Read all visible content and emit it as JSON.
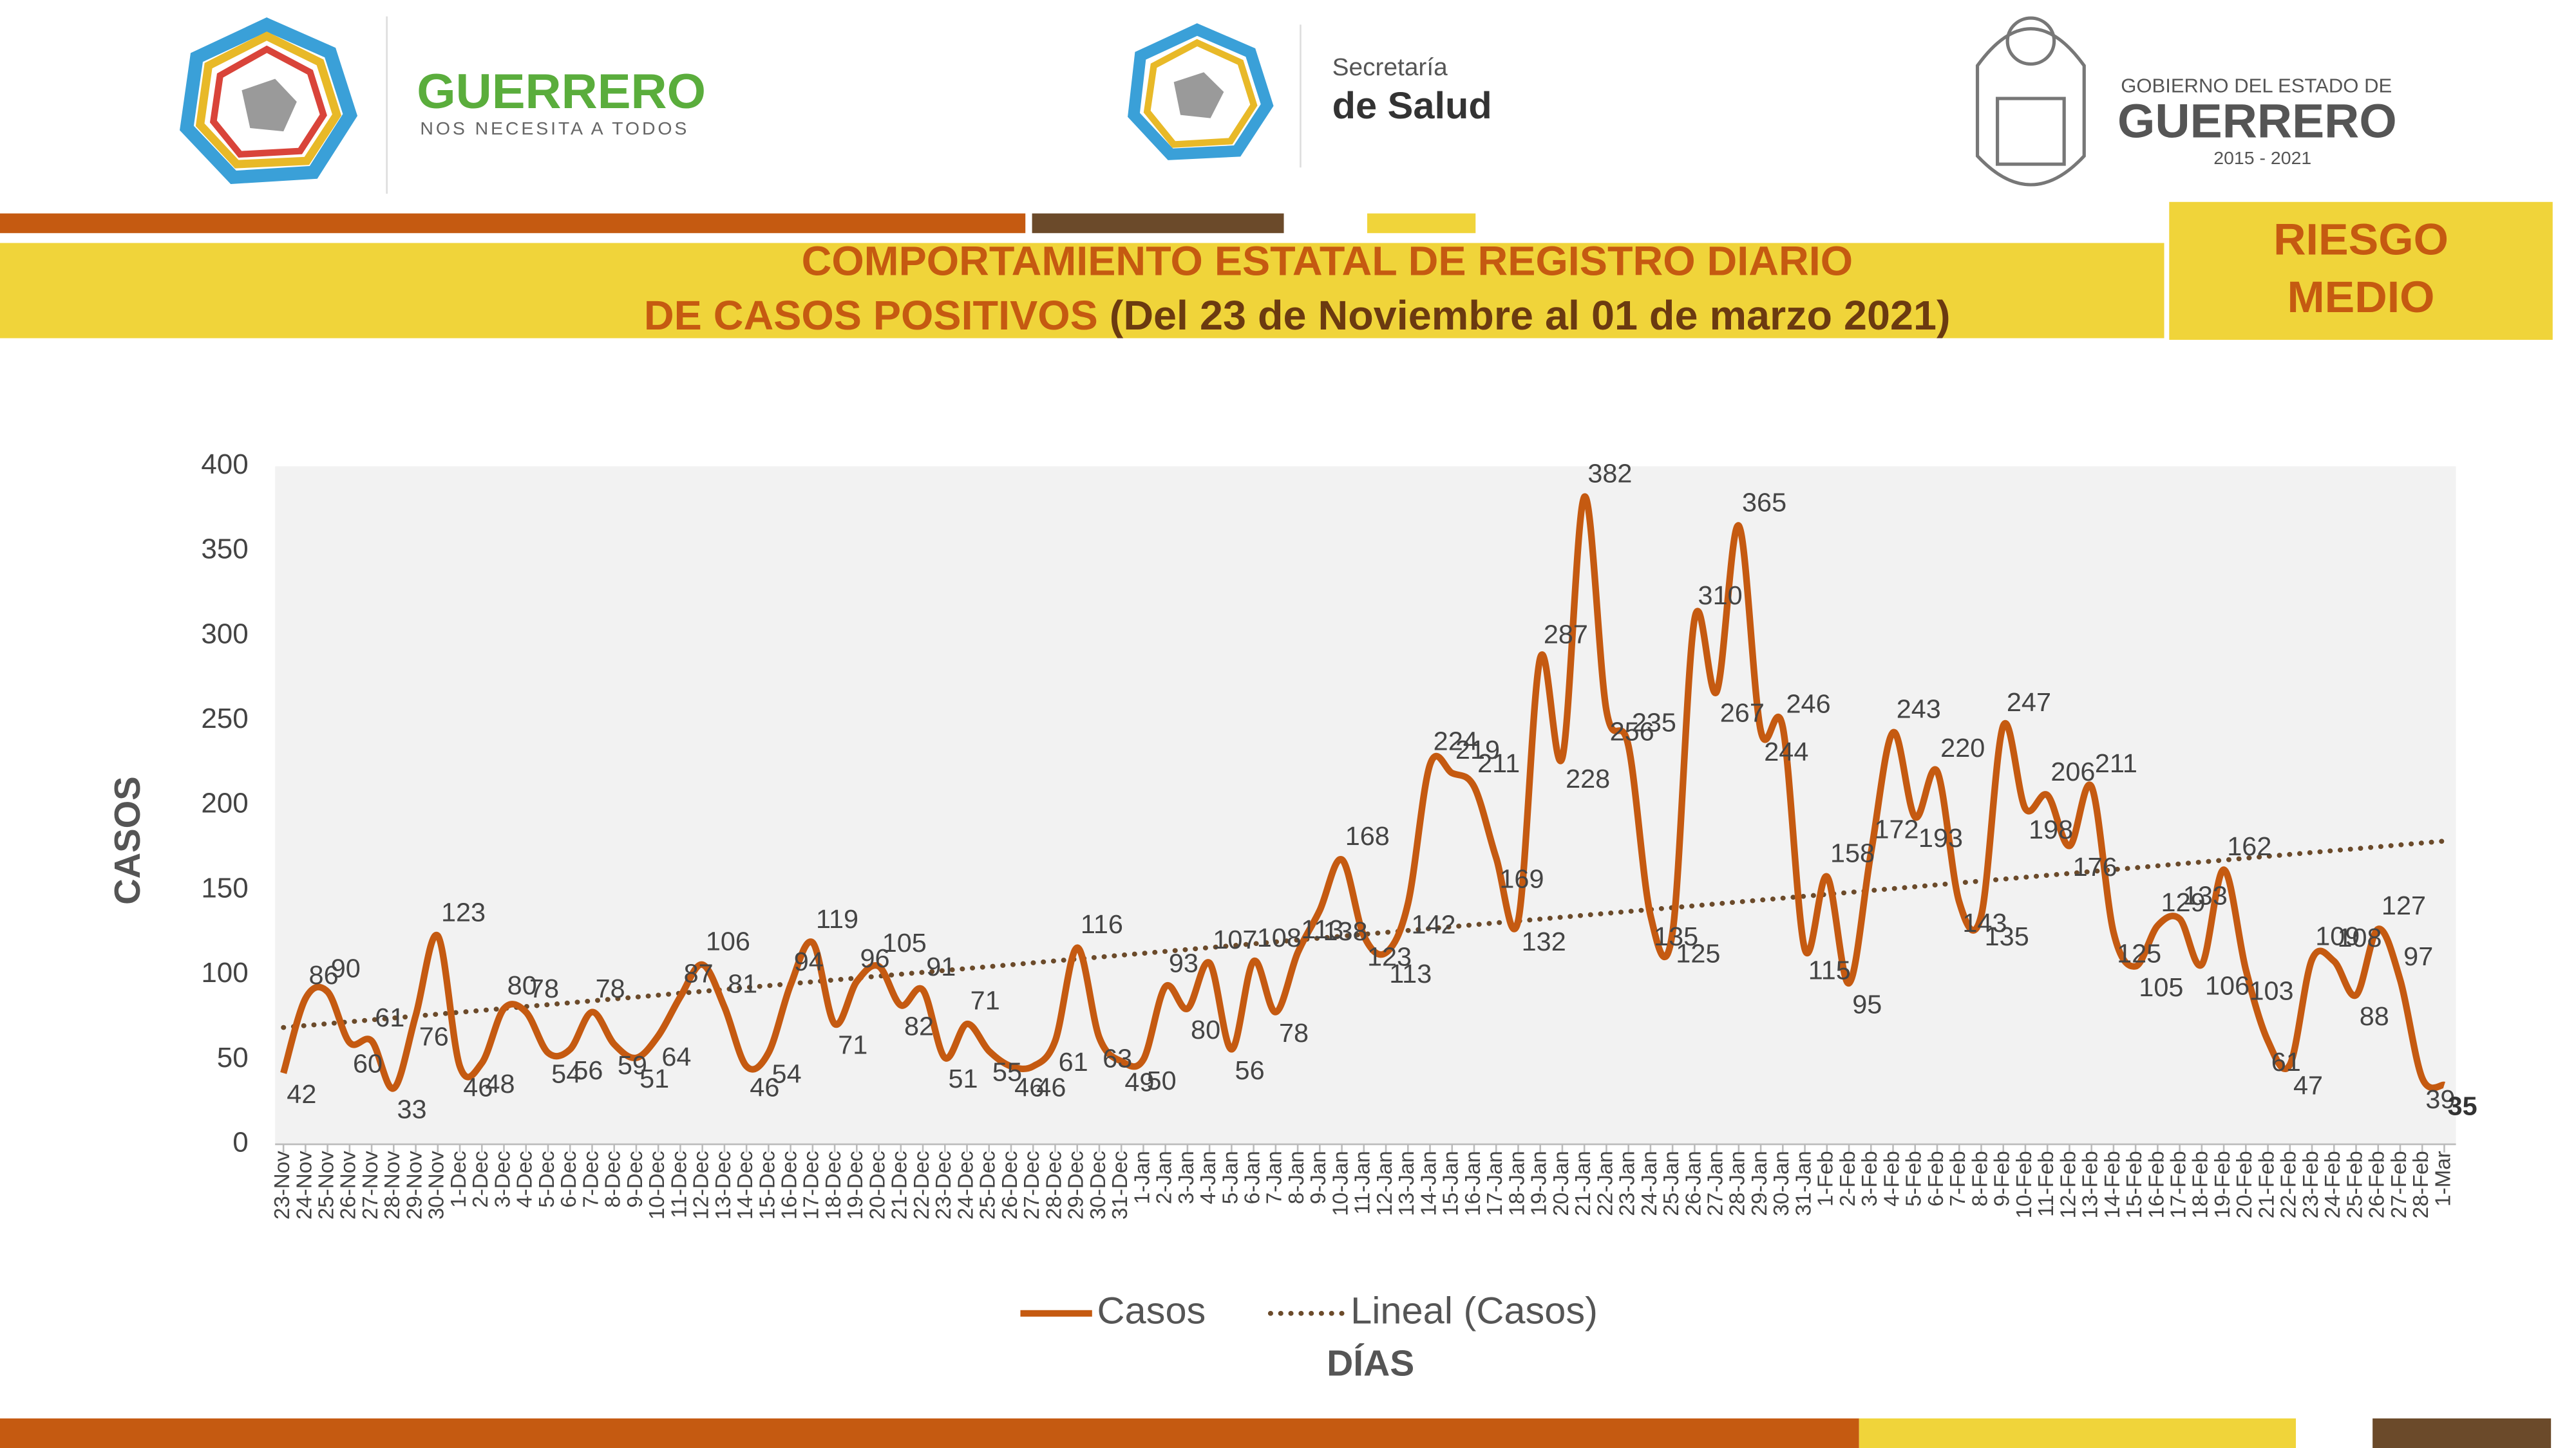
{
  "header": {
    "left": {
      "title": "GUERRERO",
      "tagline": "NOS NECESITA A TODOS"
    },
    "center": {
      "line1": "Secretaría",
      "line2": "de Salud"
    },
    "right": {
      "line1": "GOBIERNO DEL ESTADO DE",
      "line2": "GUERRERO",
      "years": "2015 - 2021"
    }
  },
  "banner": {
    "line1": "COMPORTAMIENTO ESTATAL DE REGISTRO DIARIO",
    "line2": "DE CASOS POSITIVOS",
    "line2_detail": "(Del 23 de Noviembre al 01 de marzo 2021)"
  },
  "risk": {
    "line1": "RIESGO",
    "line2": "MEDIO"
  },
  "chart_data": {
    "type": "line",
    "ylabel": "CASOS",
    "xlabel": "DÍAS",
    "categories": [
      "23-Nov",
      "24-Nov",
      "25-Nov",
      "26-Nov",
      "27-Nov",
      "28-Nov",
      "29-Nov",
      "30-Nov",
      "1-Dec",
      "2-Dec",
      "3-Dec",
      "4-Dec",
      "5-Dec",
      "6-Dec",
      "7-Dec",
      "8-Dec",
      "9-Dec",
      "10-Dec",
      "11-Dec",
      "12-Dec",
      "13-Dec",
      "14-Dec",
      "15-Dec",
      "16-Dec",
      "17-Dec",
      "18-Dec",
      "19-Dec",
      "20-Dec",
      "21-Dec",
      "22-Dec",
      "23-Dec",
      "24-Dec",
      "25-Dec",
      "26-Dec",
      "27-Dec",
      "28-Dec",
      "29-Dec",
      "30-Dec",
      "31-Dec",
      "1-Jan",
      "2-Jan",
      "3-Jan",
      "4-Jan",
      "5-Jan",
      "6-Jan",
      "7-Jan",
      "8-Jan",
      "9-Jan",
      "10-Jan",
      "11-Jan",
      "12-Jan",
      "13-Jan",
      "14-Jan",
      "15-Jan",
      "16-Jan",
      "17-Jan",
      "18-Jan",
      "19-Jan",
      "20-Jan",
      "21-Jan",
      "22-Jan",
      "23-Jan",
      "24-Jan",
      "25-Jan",
      "26-Jan",
      "27-Jan",
      "28-Jan",
      "29-Jan",
      "30-Jan",
      "31-Jan",
      "1-Feb",
      "2-Feb",
      "3-Feb",
      "4-Feb",
      "5-Feb",
      "6-Feb",
      "7-Feb",
      "8-Feb",
      "9-Feb",
      "10-Feb",
      "11-Feb",
      "12-Feb",
      "13-Feb",
      "14-Feb",
      "15-Feb",
      "16-Feb",
      "17-Feb",
      "18-Feb",
      "19-Feb",
      "20-Feb",
      "21-Feb",
      "22-Feb",
      "23-Feb",
      "24-Feb",
      "25-Feb",
      "26-Feb",
      "27-Feb",
      "28-Feb",
      "1-Mar"
    ],
    "series": [
      {
        "name": "Casos",
        "color": "#c55a11",
        "values": [
          42,
          86,
          90,
          60,
          61,
          33,
          76,
          123,
          46,
          48,
          80,
          78,
          54,
          56,
          78,
          59,
          51,
          64,
          87,
          106,
          81,
          46,
          54,
          94,
          119,
          71,
          96,
          105,
          82,
          91,
          51,
          71,
          55,
          46,
          46,
          61,
          116,
          63,
          49,
          50,
          93,
          80,
          107,
          56,
          108,
          78,
          113,
          138,
          168,
          123,
          113,
          142,
          224,
          219,
          211,
          169,
          132,
          287,
          228,
          382,
          256,
          235,
          135,
          125,
          310,
          267,
          365,
          244,
          246,
          115,
          158,
          95,
          172,
          243,
          193,
          220,
          143,
          135,
          247,
          198,
          206,
          176,
          211,
          125,
          105,
          129,
          133,
          106,
          162,
          103,
          61,
          47,
          109,
          108,
          88,
          127,
          97,
          39,
          35
        ]
      }
    ],
    "trendline": {
      "name": "Lineal (Casos)",
      "color": "#6b4a2a"
    },
    "ylim": [
      0,
      400
    ],
    "yticks": [
      0,
      50,
      100,
      150,
      200,
      250,
      300,
      350,
      400
    ],
    "grid": false,
    "legend": "bottom"
  }
}
